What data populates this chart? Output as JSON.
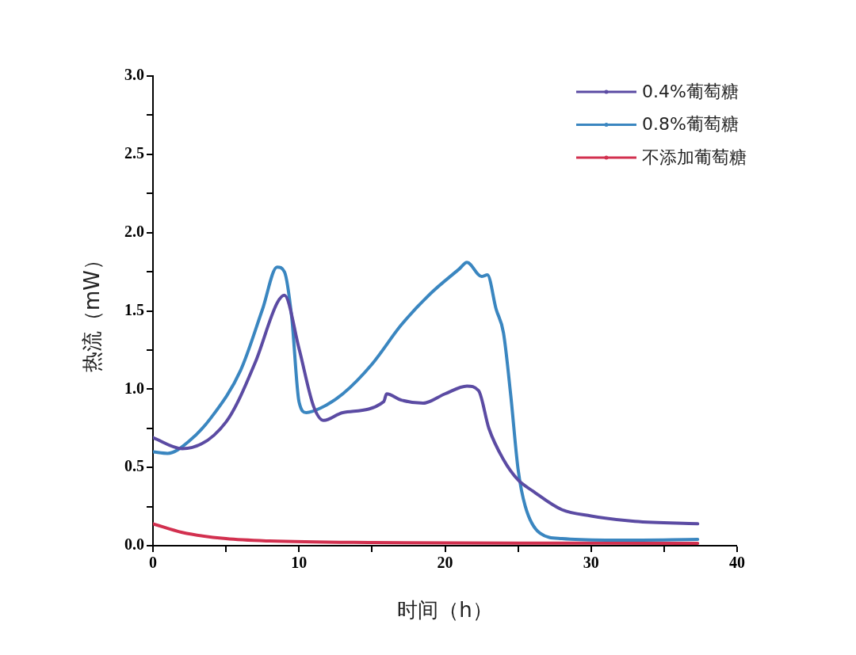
{
  "chart_data": {
    "type": "line",
    "xlabel": "时间（h）",
    "ylabel": "热流（mW）",
    "xlim": [
      0,
      40
    ],
    "xticks": [
      0,
      {
        "value": 5,
        "label": null
      },
      10,
      {
        "value": 15,
        "label": null
      },
      20,
      {
        "value": 25,
        "label": null
      },
      30,
      {
        "value": 35,
        "label": null
      },
      40
    ],
    "ylim": [
      0,
      3
    ],
    "yticks": [
      {
        "value": 0,
        "label": "0.0"
      },
      {
        "value": 0.25,
        "label": null
      },
      {
        "value": 0.5,
        "label": "0.5"
      },
      {
        "value": 0.75,
        "label": null
      },
      {
        "value": 1,
        "label": "1.0"
      },
      {
        "value": 1.25,
        "label": null
      },
      {
        "value": 1.5,
        "label": "1.5"
      },
      {
        "value": 1.75,
        "label": null
      },
      {
        "value": 2,
        "label": "2.0"
      },
      {
        "value": 2.25,
        "label": null
      },
      {
        "value": 2.5,
        "label": "2.5"
      },
      {
        "value": 2.75,
        "label": null
      },
      {
        "value": 3,
        "label": "3.0"
      }
    ],
    "grid": false,
    "legend": "top right",
    "series": [
      {
        "name": "0.4%葡萄糖",
        "color": "#5b4ba3",
        "x": [
          0,
          2,
          5,
          7,
          8.5,
          9,
          10,
          11,
          11.7,
          13,
          15.8,
          16,
          17,
          18.5,
          20,
          21.5,
          22.3,
          23,
          24,
          25,
          26,
          28,
          30,
          33,
          37.3
        ],
        "values": [
          0.69,
          0.62,
          0.79,
          1.17,
          1.55,
          1.6,
          1.26,
          0.89,
          0.8,
          0.85,
          0.92,
          0.97,
          0.93,
          0.91,
          0.97,
          1.02,
          0.99,
          0.75,
          0.55,
          0.42,
          0.35,
          0.23,
          0.19,
          0.155,
          0.14
        ]
      },
      {
        "name": "0.8%葡萄糖",
        "color": "#3a86c0",
        "x": [
          0,
          1,
          2.5,
          4,
          6,
          7.5,
          8.5,
          9,
          9.5,
          10,
          10.5,
          11.5,
          13,
          15,
          17,
          19,
          21,
          21.5,
          22.5,
          22.9,
          23.5,
          24,
          24.5,
          25,
          25.5,
          26.5,
          28,
          32,
          37.3
        ],
        "values": [
          0.6,
          0.59,
          0.67,
          0.82,
          1.12,
          1.51,
          1.78,
          1.75,
          1.46,
          0.92,
          0.85,
          0.88,
          0.97,
          1.16,
          1.41,
          1.61,
          1.77,
          1.81,
          1.72,
          1.73,
          1.51,
          1.36,
          0.96,
          0.49,
          0.25,
          0.08,
          0.045,
          0.035,
          0.04
        ]
      },
      {
        "name": "不添加葡萄糖",
        "color": "#d2304f",
        "x": [
          0,
          2,
          5,
          8,
          15,
          25,
          37.3
        ],
        "values": [
          0.14,
          0.085,
          0.045,
          0.03,
          0.02,
          0.017,
          0.015
        ]
      }
    ]
  }
}
